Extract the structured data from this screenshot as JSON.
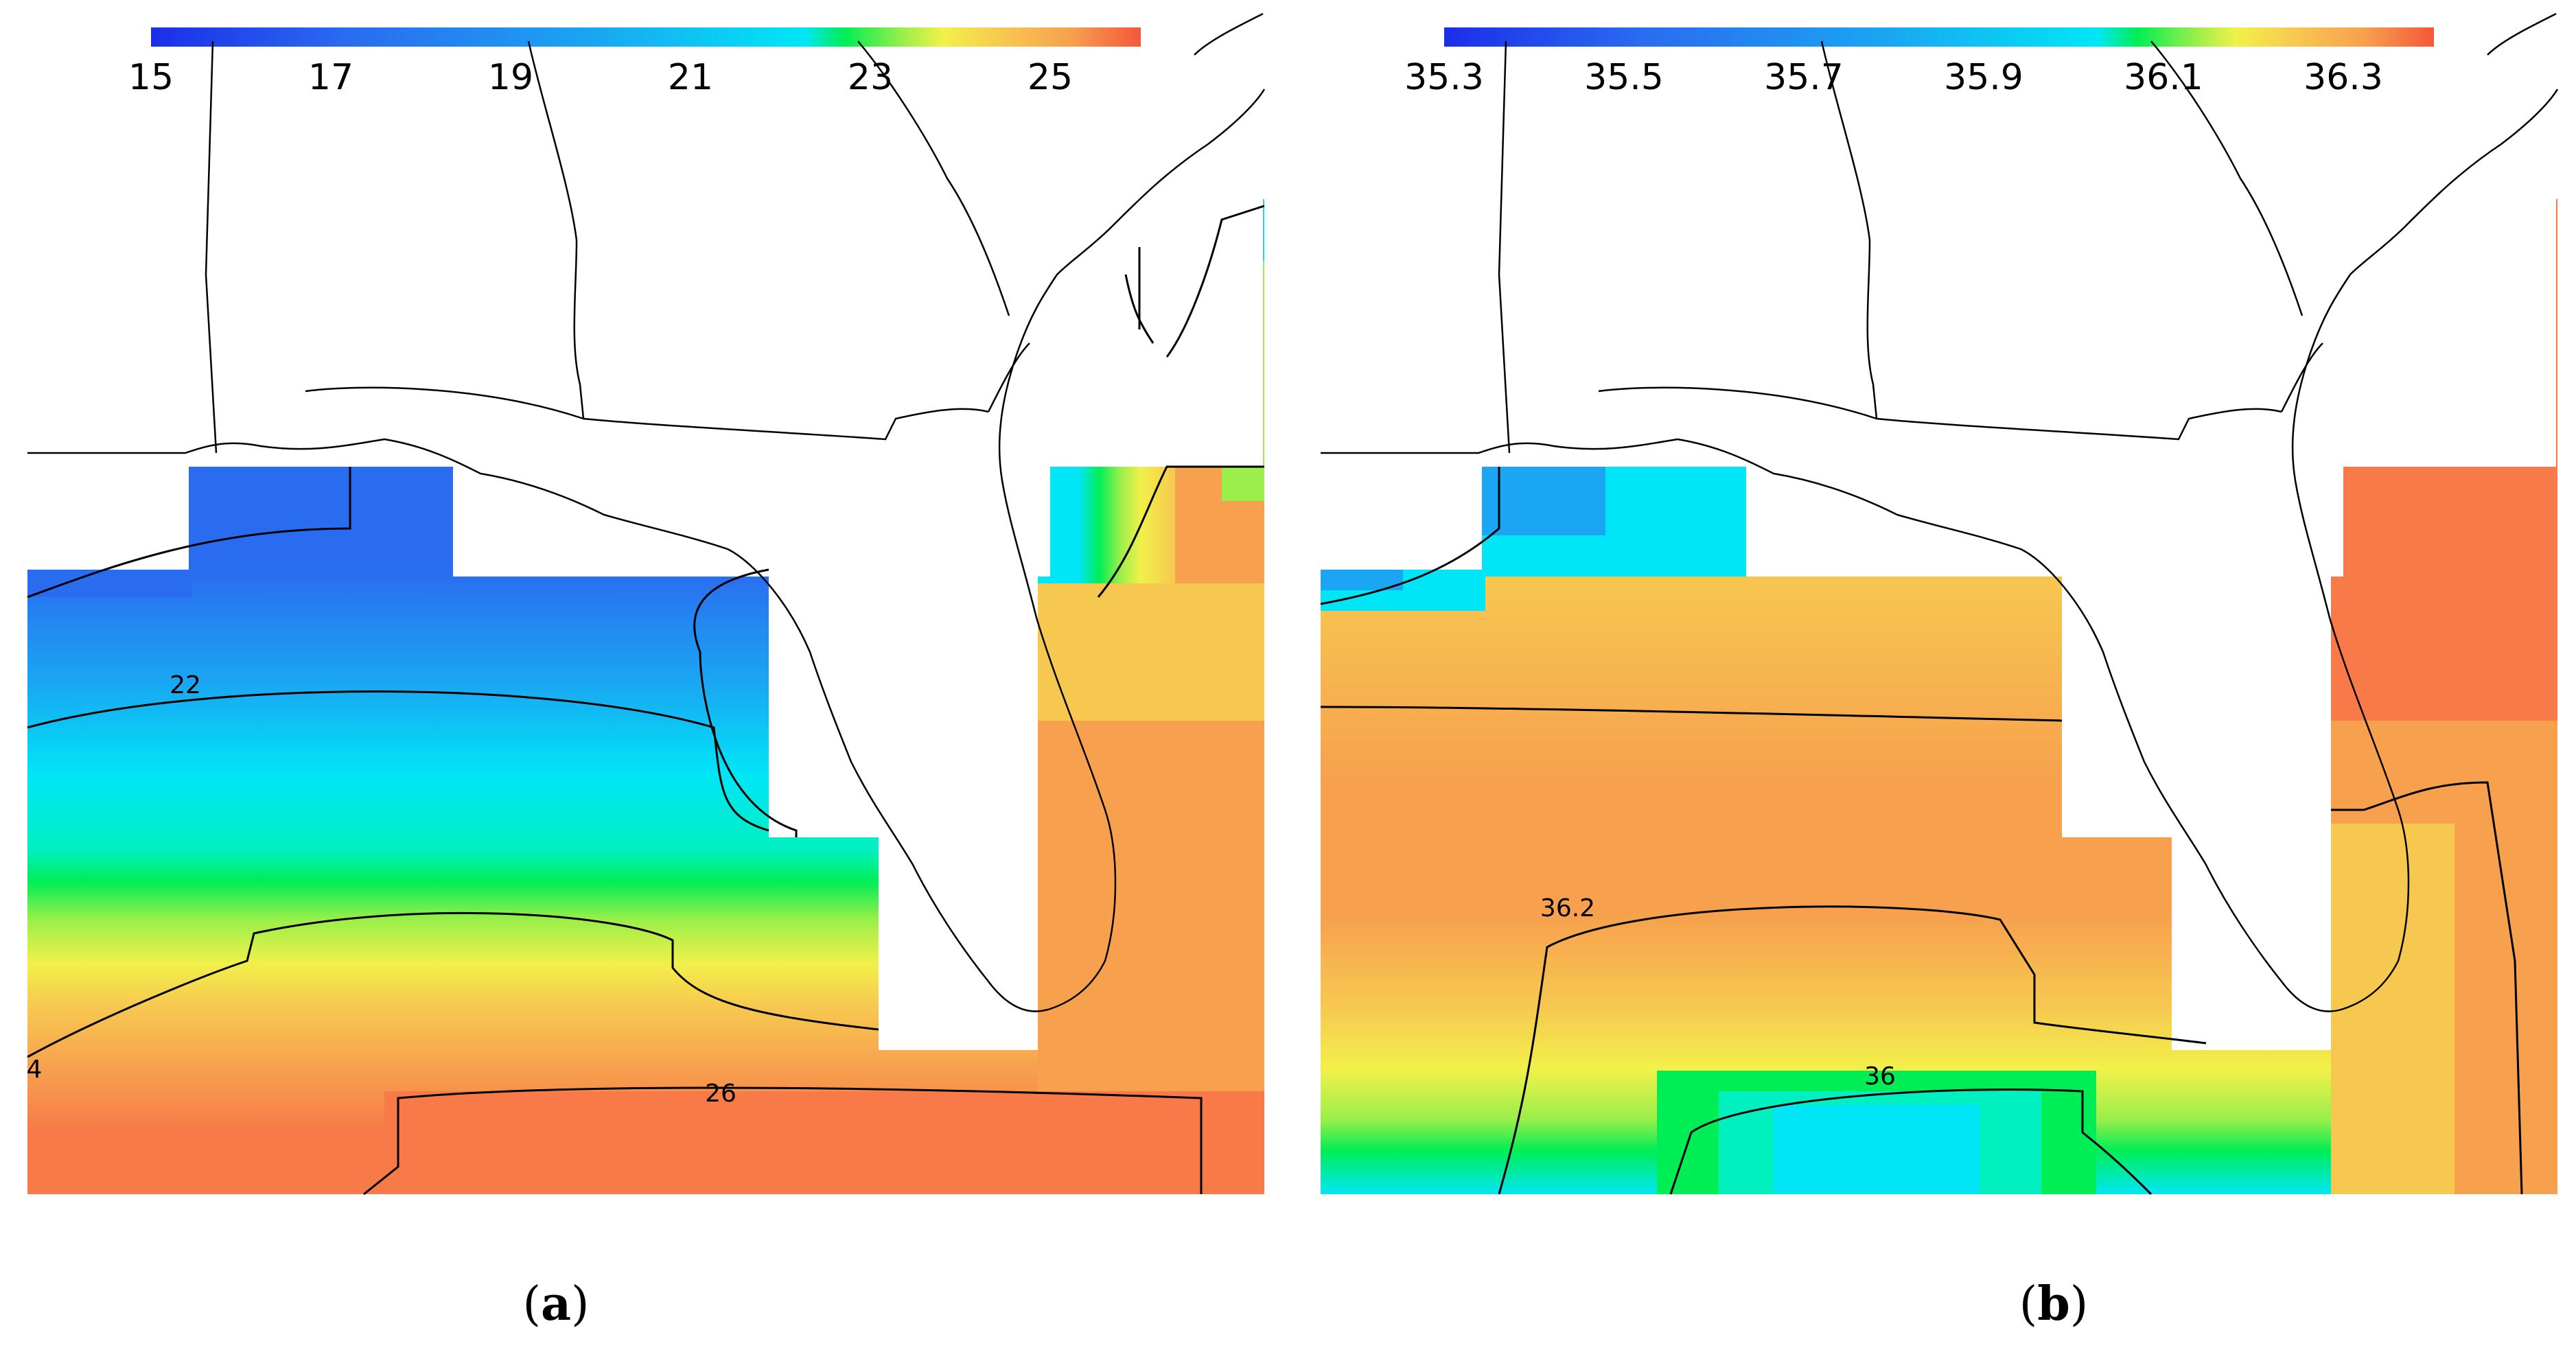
{
  "colors": {
    "scale": [
      "#1b2ee8",
      "#2a6cf0",
      "#1aa6f2",
      "#00e6f6",
      "#00ee55",
      "#9aef4a",
      "#f2f04a",
      "#f7c850",
      "#f7a04e",
      "#f77a48",
      "#f5573a"
    ],
    "land": "#ffffff",
    "line": "#000000"
  },
  "panels": [
    {
      "id": "a",
      "colorbar_ticks": [
        "15",
        "17",
        "19",
        "21",
        "23",
        "25"
      ],
      "contour_labels": [
        "22",
        "26",
        "4"
      ],
      "caption_letter": "a"
    },
    {
      "id": "b",
      "colorbar_ticks": [
        "35.3",
        "35.5",
        "35.7",
        "35.9",
        "36.1",
        "36.3"
      ],
      "contour_labels": [
        "36.2",
        "36"
      ],
      "caption_letter": "b"
    }
  ]
}
